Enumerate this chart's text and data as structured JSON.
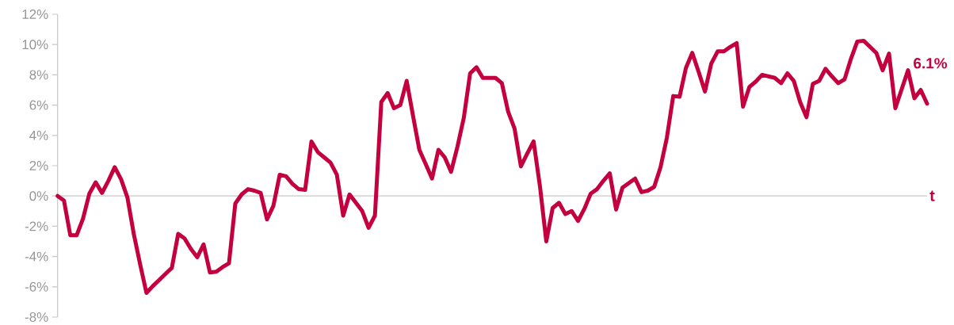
{
  "chart_data": {
    "type": "line",
    "xlabel": "t",
    "tick_labels": "y",
    "line_style": "solid",
    "ylim": [
      -8,
      12
    ],
    "yticks": [
      {
        "value": -8,
        "label": "-8%"
      },
      {
        "value": -6,
        "label": "-6%"
      },
      {
        "value": -4,
        "label": "-4%"
      },
      {
        "value": -2,
        "label": "-2%"
      },
      {
        "value": 0,
        "label": "0%"
      },
      {
        "value": 2,
        "label": "2%"
      },
      {
        "value": 4,
        "label": "4%"
      },
      {
        "value": 6,
        "label": "6%"
      },
      {
        "value": 8,
        "label": "8%"
      },
      {
        "value": 10,
        "label": "10%"
      },
      {
        "value": 12,
        "label": "12%"
      }
    ],
    "categories": [
      null,
      null,
      null,
      null,
      null,
      null,
      null,
      null,
      null,
      null,
      null,
      null,
      null,
      null,
      null,
      null,
      null,
      null,
      null,
      null,
      null,
      null,
      null,
      null,
      null,
      null,
      null,
      null,
      null,
      null,
      null,
      null,
      null,
      null,
      null,
      null,
      null,
      null,
      null,
      null,
      null,
      null,
      null,
      null,
      null,
      null,
      null,
      null,
      null,
      null,
      null,
      null,
      null,
      null,
      null,
      null,
      null,
      null,
      null,
      null,
      null,
      null,
      null,
      null,
      null,
      null,
      null,
      null,
      null,
      null,
      null,
      null,
      null,
      null,
      null,
      null,
      null,
      null,
      null,
      null,
      null,
      null,
      null,
      null,
      null,
      null,
      null,
      null,
      null,
      null,
      null,
      null,
      null,
      null,
      null,
      null,
      null,
      null,
      null,
      null,
      null,
      null,
      null,
      null,
      null,
      null,
      null,
      null,
      null,
      null,
      null,
      null,
      null,
      null,
      null,
      null,
      null,
      null,
      null,
      null,
      null,
      null,
      null,
      null,
      null,
      null,
      null,
      null,
      null,
      null,
      null,
      null,
      null,
      null,
      null,
      null,
      null,
      null
    ],
    "series": [
      {
        "color": "#c4003f",
        "values": [
          0,
          -0.3,
          -2.6,
          -2.6,
          -1.5,
          0.15,
          0.9,
          0.2,
          1.0,
          1.9,
          1.1,
          -0.1,
          -2.5,
          -4.5,
          -6.4,
          -5.95,
          -5.55,
          -5.15,
          -4.75,
          -2.5,
          -2.8,
          -3.5,
          -4.05,
          -3.2,
          -5.05,
          -5.0,
          -4.7,
          -4.45,
          -0.5,
          0.1,
          0.45,
          0.35,
          0.2,
          -1.55,
          -0.65,
          1.4,
          1.3,
          0.8,
          0.45,
          0.4,
          3.6,
          2.9,
          2.55,
          2.2,
          1.4,
          -1.3,
          0.1,
          -0.45,
          -1.0,
          -2.1,
          -1.3,
          6.2,
          6.8,
          5.8,
          6.0,
          7.6,
          5.3,
          3.05,
          2.1,
          1.15,
          3.05,
          2.55,
          1.6,
          3.25,
          5.15,
          8.1,
          8.5,
          7.8,
          7.8,
          7.8,
          7.45,
          5.55,
          4.45,
          1.95,
          2.8,
          3.6,
          0.65,
          -3.0,
          -0.8,
          -0.45,
          -1.2,
          -1.0,
          -1.65,
          -0.85,
          0.15,
          0.45,
          1.0,
          1.5,
          -0.9,
          0.55,
          0.85,
          1.15,
          0.25,
          0.35,
          0.6,
          1.9,
          3.85,
          6.6,
          6.55,
          8.45,
          9.45,
          8.2,
          6.9,
          8.75,
          9.55,
          9.55,
          9.85,
          10.1,
          5.9,
          7.2,
          7.55,
          8.0,
          7.9,
          7.8,
          7.45,
          8.1,
          7.6,
          6.2,
          5.2,
          7.4,
          7.6,
          8.4,
          7.9,
          7.45,
          7.7,
          9.05,
          10.2,
          10.25,
          9.85,
          9.45,
          8.3,
          9.4,
          5.8,
          7.05,
          8.3,
          6.45,
          7.0,
          6.1
        ]
      }
    ],
    "annotations": [
      "6.1%"
    ]
  }
}
